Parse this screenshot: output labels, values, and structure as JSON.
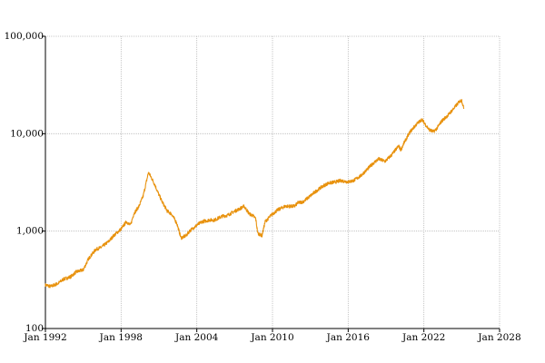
{
  "chart_data": {
    "type": "line",
    "title": "",
    "xlabel": "",
    "ylabel": "",
    "y_scale": "log",
    "ylim": [
      100,
      100000
    ],
    "xlim": [
      "1992-01",
      "2028-01"
    ],
    "grid": true,
    "legend": "none",
    "colors": {
      "series": "#e8920e",
      "grid": "#b8b8b8",
      "axis": "#000000"
    },
    "y_ticks": [
      {
        "value": 100,
        "label": "100"
      },
      {
        "value": 1000,
        "label": "1,000"
      },
      {
        "value": 10000,
        "label": "10,000"
      },
      {
        "value": 100000,
        "label": "100,000"
      }
    ],
    "x_ticks": [
      {
        "value": "1992-01",
        "label": "Jan 1992"
      },
      {
        "value": "1998-01",
        "label": "Jan 1998"
      },
      {
        "value": "2004-01",
        "label": "Jan 2004"
      },
      {
        "value": "2010-01",
        "label": "Jan 2010"
      },
      {
        "value": "2016-01",
        "label": "Jan 2016"
      },
      {
        "value": "2022-01",
        "label": "Jan 2022"
      },
      {
        "value": "2028-01",
        "label": "Jan 2028"
      }
    ],
    "series": [
      {
        "x": [
          "1992-01",
          "1992-06",
          "1993-01",
          "1993-06",
          "1994-01",
          "1994-06",
          "1995-01",
          "1995-06",
          "1996-01",
          "1996-06",
          "1997-01",
          "1997-06",
          "1998-01",
          "1998-06",
          "1998-10",
          "1999-01",
          "1999-06",
          "1999-10",
          "2000-01",
          "2000-03",
          "2000-06",
          "2000-09",
          "2000-12",
          "2001-04",
          "2001-09",
          "2002-01",
          "2002-06",
          "2002-10",
          "2003-03",
          "2003-06",
          "2004-01",
          "2004-06",
          "2005-01",
          "2005-06",
          "2006-01",
          "2006-06",
          "2007-01",
          "2007-06",
          "2007-10",
          "2008-03",
          "2008-06",
          "2008-09",
          "2008-11",
          "2009-03",
          "2009-06",
          "2010-01",
          "2010-06",
          "2011-01",
          "2011-06",
          "2011-10",
          "2012-01",
          "2012-06",
          "2013-01",
          "2013-06",
          "2014-01",
          "2014-06",
          "2015-01",
          "2015-06",
          "2016-01",
          "2016-06",
          "2017-01",
          "2017-06",
          "2018-01",
          "2018-06",
          "2018-12",
          "2019-06",
          "2020-01",
          "2020-03",
          "2020-06",
          "2020-12",
          "2021-06",
          "2021-11",
          "2022-06",
          "2022-10",
          "2023-01",
          "2023-06",
          "2023-12",
          "2024-06",
          "2024-11",
          "2025-01",
          "2025-03"
        ],
        "y": [
          280,
          270,
          290,
          320,
          340,
          380,
          400,
          520,
          650,
          680,
          780,
          900,
          1050,
          1250,
          1150,
          1500,
          1800,
          2300,
          3200,
          4000,
          3500,
          3000,
          2500,
          2000,
          1600,
          1500,
          1200,
          850,
          900,
          1000,
          1150,
          1250,
          1300,
          1300,
          1420,
          1450,
          1600,
          1700,
          1800,
          1500,
          1450,
          1350,
          950,
          900,
          1250,
          1500,
          1650,
          1800,
          1800,
          1800,
          1950,
          2000,
          2300,
          2550,
          2900,
          3100,
          3200,
          3300,
          3200,
          3300,
          3700,
          4200,
          5000,
          5500,
          5200,
          6000,
          7500,
          6800,
          8000,
          10500,
          12500,
          14000,
          11000,
          10500,
          11200,
          13500,
          15500,
          18500,
          21500,
          22000,
          18000
        ]
      }
    ]
  }
}
